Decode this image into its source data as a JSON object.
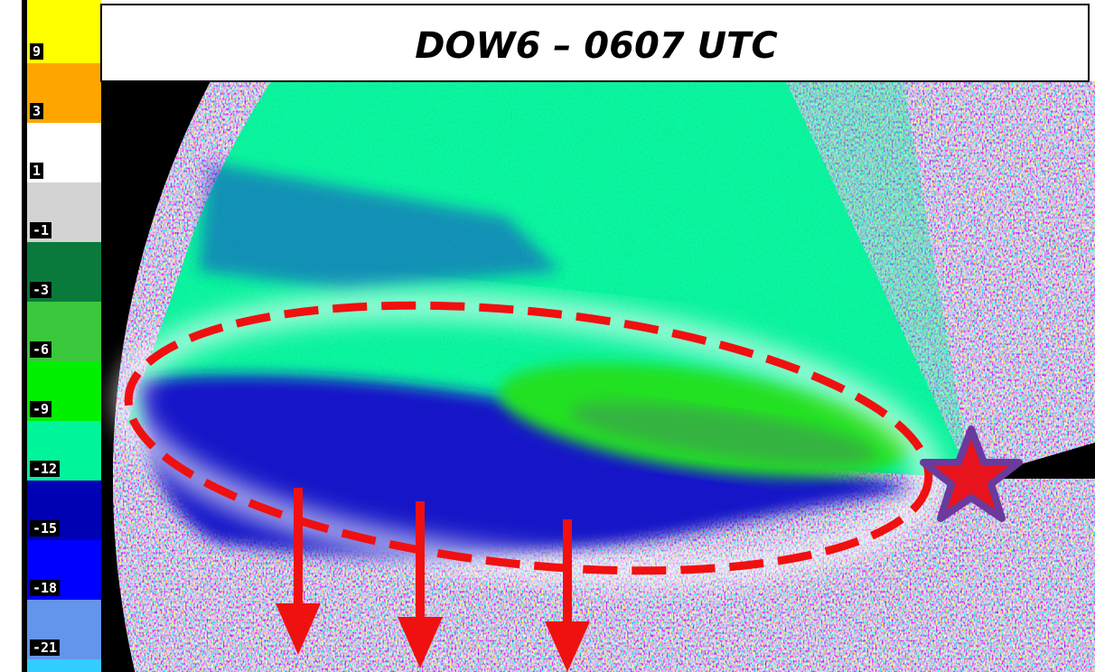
{
  "title": "DOW6 – 0607 UTC",
  "colorbar": [
    {
      "label": 9,
      "color": "#ffff00"
    },
    {
      "label": 3,
      "color": "#ffa500"
    },
    {
      "label": 1,
      "color": "#ffffff"
    },
    {
      "label": -1,
      "color": "#d3d3d3"
    },
    {
      "label": -3,
      "color": "#0a7a3c"
    },
    {
      "label": -6,
      "color": "#3cc83c"
    },
    {
      "label": -9,
      "color": "#00f000"
    },
    {
      "label": -12,
      "color": "#00f59a"
    },
    {
      "label": -15,
      "color": "#0000b4"
    },
    {
      "label": -18,
      "color": "#0000ff"
    },
    {
      "label": -21,
      "color": "#6495ed"
    }
  ]
}
